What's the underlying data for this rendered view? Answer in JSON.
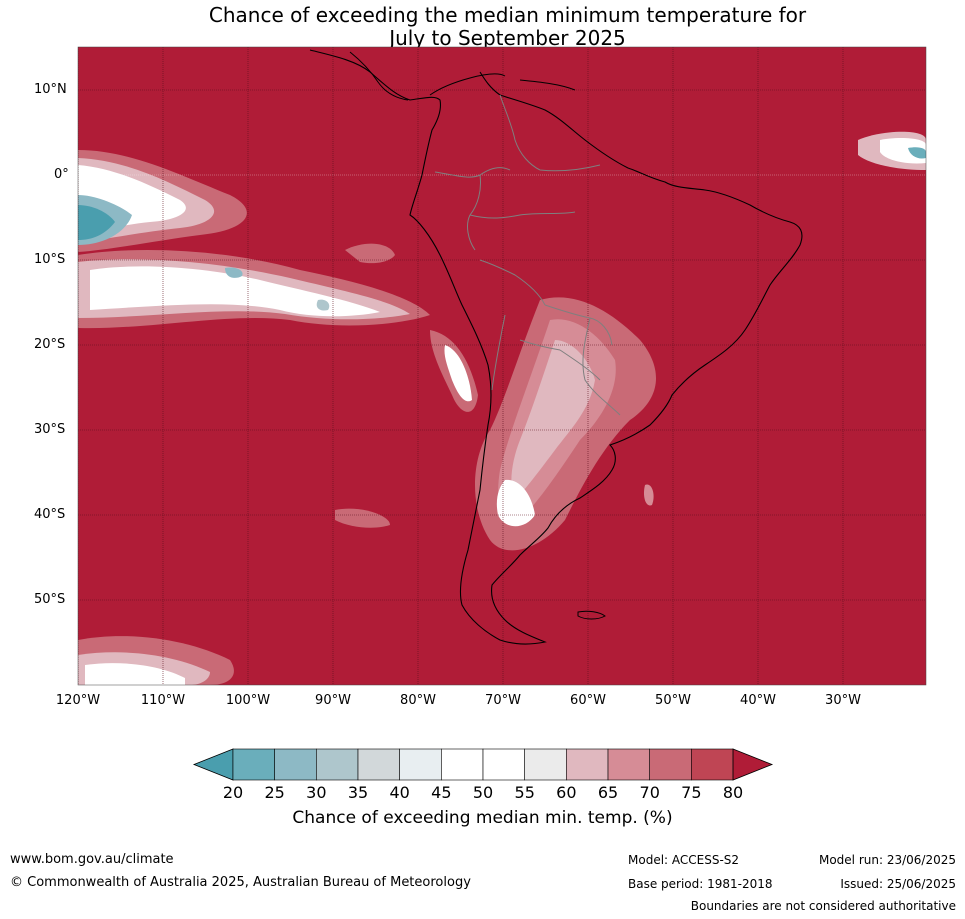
{
  "title_line1": "Chance of exceeding the median minimum temperature for",
  "title_line2": "July to September 2025",
  "lat_labels": [
    "10°N",
    "0°",
    "10°S",
    "20°S",
    "30°S",
    "40°S",
    "50°S"
  ],
  "lon_labels": [
    "120°W",
    "110°W",
    "100°W",
    "90°W",
    "80°W",
    "70°W",
    "60°W",
    "50°W",
    "40°W",
    "30°W"
  ],
  "colorbar": {
    "title": "Chance of exceeding median min. temp. (%)",
    "ticks": [
      "20",
      "25",
      "30",
      "35",
      "40",
      "45",
      "50",
      "55",
      "60",
      "65",
      "70",
      "75",
      "80"
    ],
    "colors": [
      "#4a9eae",
      "#6aaebb",
      "#8db9c5",
      "#aec6cc",
      "#d2d8da",
      "#e8eef1",
      "#ffffff",
      "#ffffff",
      "#ebebeb",
      "#e0b8bf",
      "#d68c96",
      "#c96a76",
      "#bf4554",
      "#b01c37"
    ]
  },
  "colors": {
    "dominant": "#b01c37",
    "land_border": "#000000",
    "country_border": "#7f7f7f"
  },
  "footer": {
    "website": "www.bom.gov.au/climate",
    "copyright": "© Commonwealth of Australia 2025, Australian Bureau of Meteorology",
    "model": "Model: ACCESS-S2",
    "base_period": "Base period: 1981-2018",
    "model_run": "Model run: 23/06/2025",
    "issued": "Issued: 25/06/2025",
    "disclaimer": "Boundaries are not considered authoritative"
  }
}
